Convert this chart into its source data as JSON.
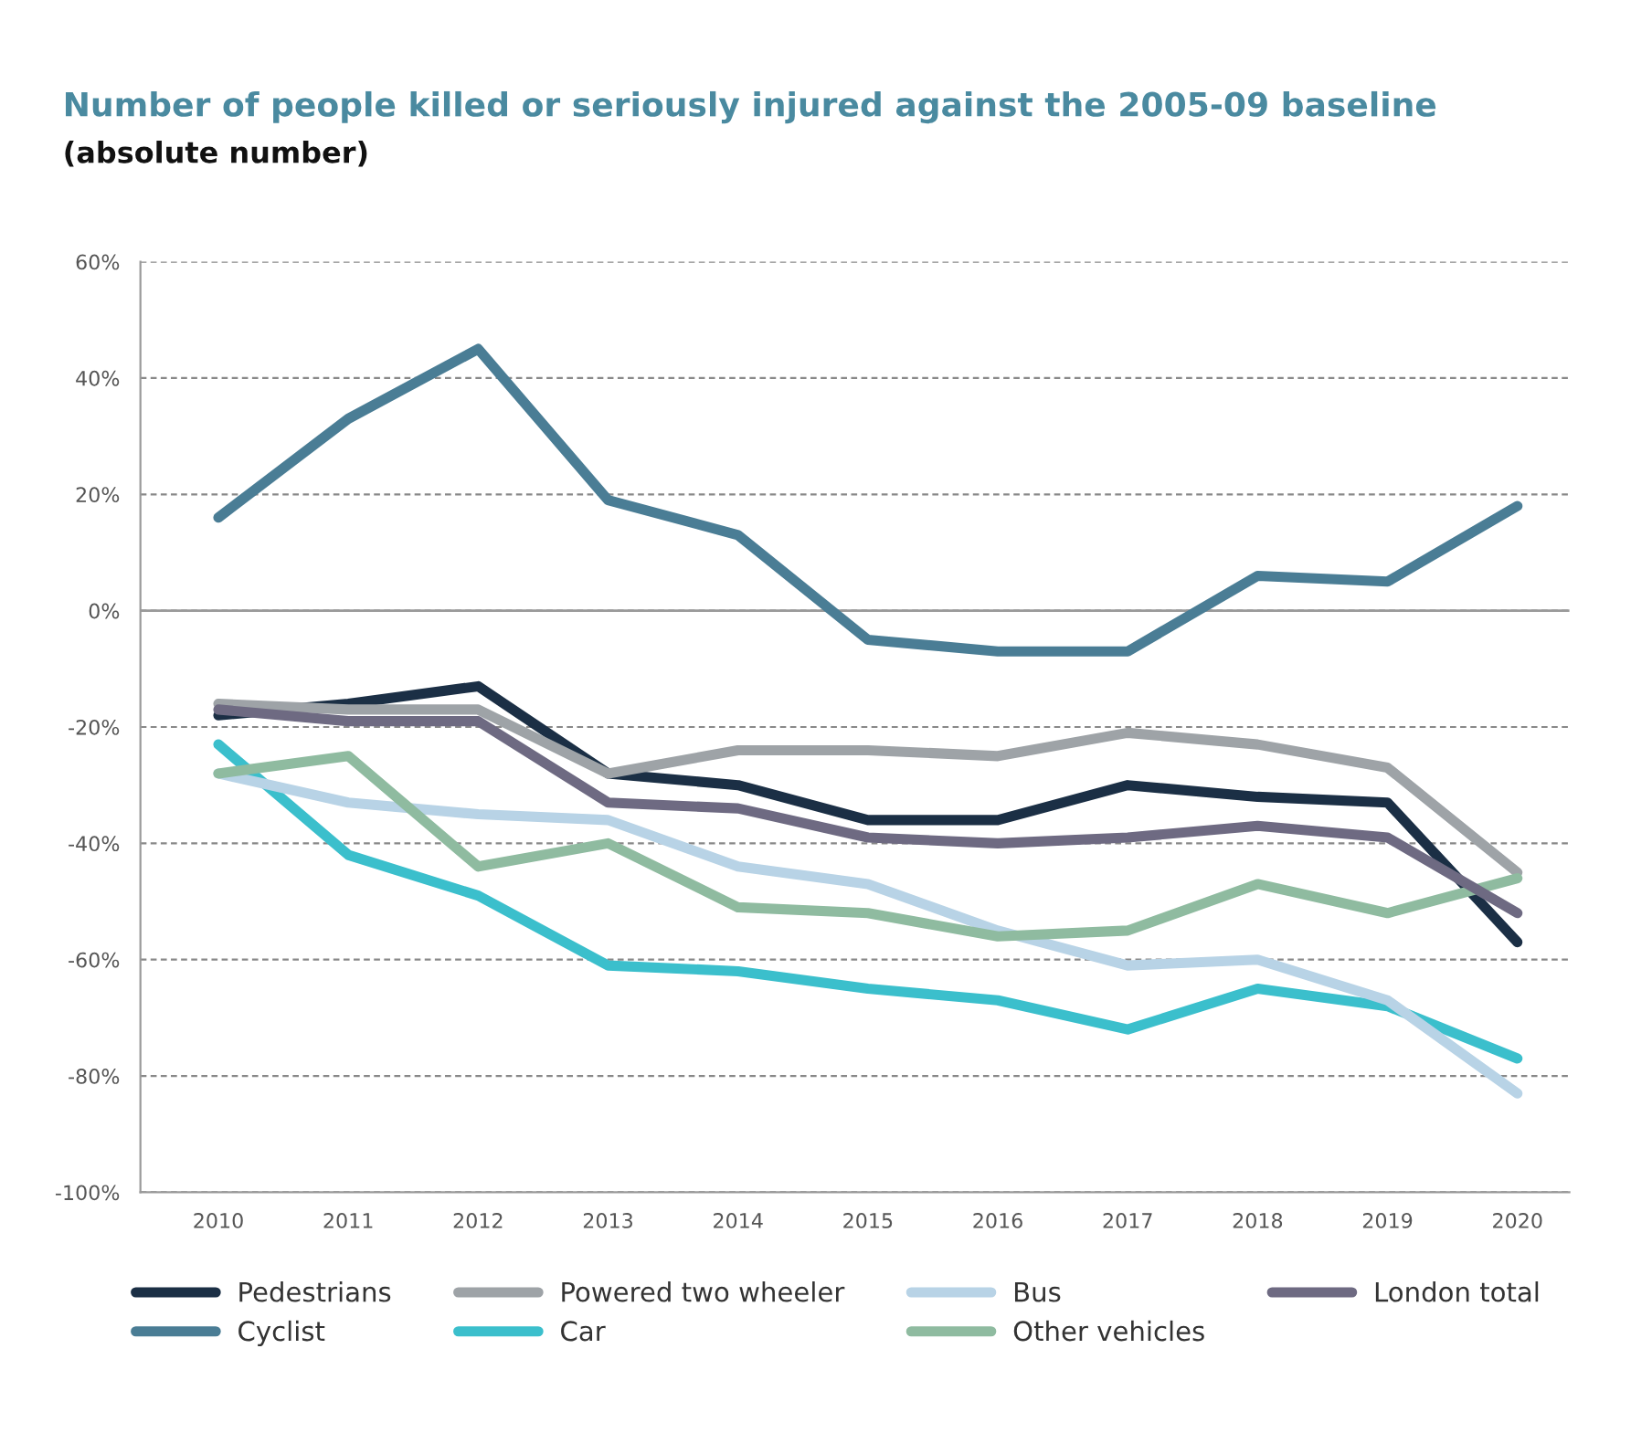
{
  "chart_data": {
    "type": "line",
    "title": "Number of people killed or seriously injured against the 2005-09 baseline",
    "subtitle": "(absolute number)",
    "categories": [
      "2010",
      "2011",
      "2012",
      "2013",
      "2014",
      "2015",
      "2016",
      "2017",
      "2018",
      "2019",
      "2020"
    ],
    "series": [
      {
        "name": "Pedestrians",
        "color": "#1b2f45",
        "values": [
          -18,
          -16,
          -13,
          -28,
          -30,
          -36,
          -36,
          -30,
          -32,
          -33,
          -57
        ]
      },
      {
        "name": "Cyclist",
        "color": "#4a7d95",
        "values": [
          16,
          33,
          45,
          19,
          13,
          -5,
          -7,
          -7,
          6,
          5,
          18
        ]
      },
      {
        "name": "Powered two wheeler",
        "color": "#9ea3a7",
        "values": [
          -16,
          -17,
          -17,
          -28,
          -24,
          -24,
          -25,
          -21,
          -23,
          -27,
          -45
        ]
      },
      {
        "name": "Car",
        "color": "#3bbfcc",
        "values": [
          -23,
          -42,
          -49,
          -61,
          -62,
          -65,
          -67,
          -72,
          -65,
          -68,
          -77
        ]
      },
      {
        "name": "Bus",
        "color": "#b8d3e6",
        "values": [
          -28,
          -33,
          -35,
          -36,
          -44,
          -47,
          -55,
          -61,
          -60,
          -67,
          -83
        ]
      },
      {
        "name": "Other vehicles",
        "color": "#8fbba0",
        "values": [
          -28,
          -25,
          -44,
          -40,
          -51,
          -52,
          -56,
          -55,
          -47,
          -52,
          -46
        ]
      },
      {
        "name": "London total",
        "color": "#6e6a82",
        "values": [
          -17,
          -19,
          -19,
          -33,
          -34,
          -39,
          -40,
          -39,
          -37,
          -39,
          -52
        ]
      }
    ],
    "ylim": [
      -100,
      60
    ],
    "yticks": [
      {
        "value": -100,
        "label": "-100%"
      },
      {
        "value": -80,
        "label": "-80%"
      },
      {
        "value": -60,
        "label": "-60%"
      },
      {
        "value": -40,
        "label": "-40%"
      },
      {
        "value": -20,
        "label": "-20%"
      },
      {
        "value": 0,
        "label": "0%"
      },
      {
        "value": 20,
        "label": "20%"
      },
      {
        "value": 40,
        "label": "40%"
      },
      {
        "value": 60,
        "label": "60%"
      }
    ],
    "ref_lines": [
      {
        "axis": "y",
        "value": 0,
        "label": null,
        "color": "#9a9a9a",
        "line_style": "solid"
      }
    ],
    "grid": "y",
    "legend": "bottom",
    "line_style": "solid",
    "marker": "none"
  }
}
